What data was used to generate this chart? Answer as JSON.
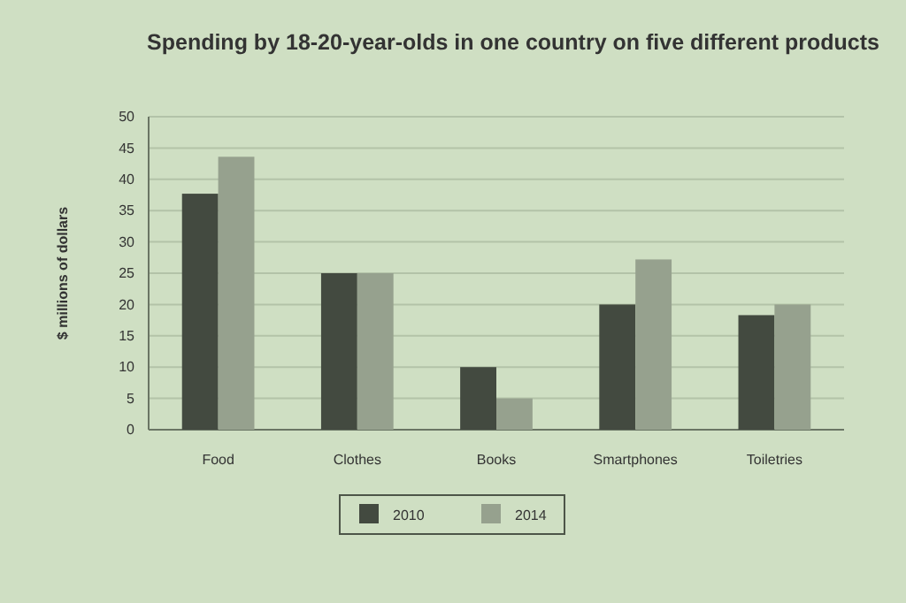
{
  "chart_data": {
    "type": "bar",
    "title": "Spending by 18-20-year-olds in one country on five different products",
    "ylabel": "$ millions of dollars",
    "categories": [
      "Food",
      "Clothes",
      "Books",
      "Smartphones",
      "Toiletries"
    ],
    "series": [
      {
        "name": "2010",
        "color": "#434a40",
        "values": [
          37.7,
          25,
          10,
          20,
          18.3
        ]
      },
      {
        "name": "2014",
        "color": "#96a18e",
        "values": [
          43.6,
          25,
          5,
          27.2,
          20
        ]
      }
    ],
    "ylim": [
      0,
      50
    ],
    "yticks": [
      0,
      5,
      10,
      15,
      20,
      25,
      30,
      35,
      40,
      45,
      50
    ],
    "grid": "y",
    "legend": "bottom"
  }
}
